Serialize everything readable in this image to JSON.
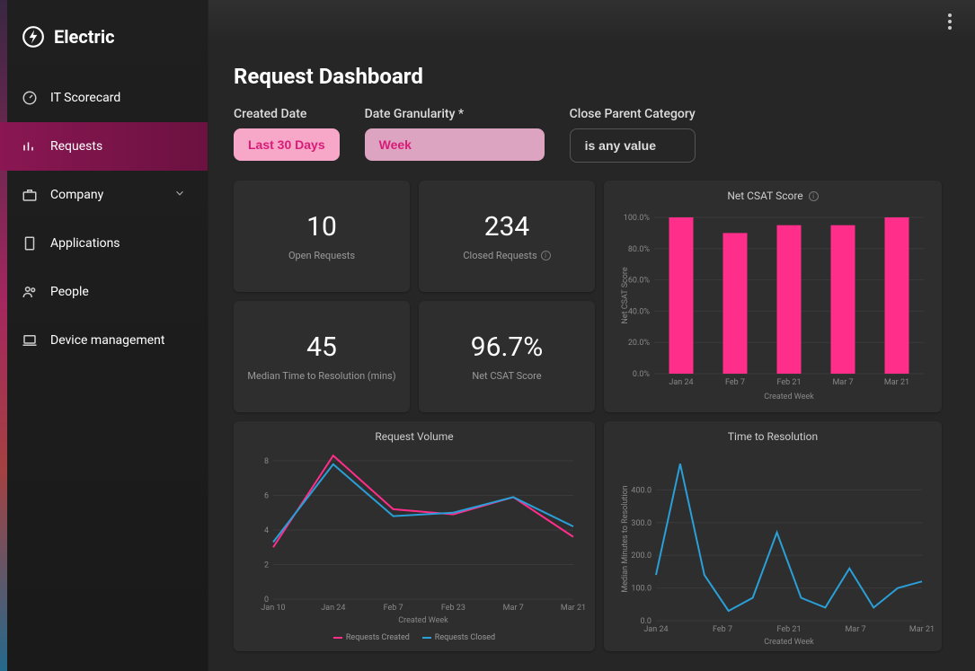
{
  "brand": "Electric",
  "nav": {
    "items": [
      {
        "key": "scorecard",
        "label": "IT Scorecard"
      },
      {
        "key": "requests",
        "label": "Requests",
        "active": true
      },
      {
        "key": "company",
        "label": "Company",
        "expandable": true
      },
      {
        "key": "applications",
        "label": "Applications"
      },
      {
        "key": "people",
        "label": "People"
      },
      {
        "key": "devices",
        "label": "Device management"
      }
    ]
  },
  "page_title": "Request Dashboard",
  "filters": {
    "created_date": {
      "label": "Created Date",
      "value": "Last 30 Days"
    },
    "granularity": {
      "label": "Date Granularity *",
      "value": "Week"
    },
    "close_parent": {
      "label": "Close Parent Category",
      "value": "is any value"
    }
  },
  "kpis": {
    "open": {
      "value": "10",
      "label": "Open Requests"
    },
    "closed": {
      "value": "234",
      "label": "Closed Requests"
    },
    "median_time": {
      "value": "45",
      "label": "Median Time to Resolution (mins)"
    },
    "csat": {
      "value": "96.7%",
      "label": "Net CSAT Score"
    }
  },
  "csat_chart": {
    "title": "Net CSAT Score",
    "type": "bar",
    "categories": [
      "Jan 24",
      "Feb 7",
      "Feb 21",
      "Mar 7",
      "Mar 21"
    ],
    "values": [
      100,
      90,
      95,
      95,
      100
    ],
    "bar_color": "#ff2e8b",
    "ylim": [
      0,
      100
    ],
    "ytick_step": 20,
    "ytick_format": "percent",
    "x_axis_label": "Created Week",
    "y_axis_label": "Net CSAT Score",
    "background": "#2e2e2e",
    "grid_color": "#3a3a3a",
    "bar_width": 0.45
  },
  "volume_chart": {
    "title": "Request Volume",
    "type": "line",
    "categories": [
      "Jan 10",
      "Jan 24",
      "Feb 7",
      "Feb 23",
      "Mar 7",
      "Mar 21"
    ],
    "series": [
      {
        "name": "Requests Created",
        "color": "#ff2e8b",
        "values": [
          3.0,
          8.3,
          5.2,
          4.9,
          5.9,
          3.6
        ]
      },
      {
        "name": "Requests Closed",
        "color": "#2a9fd8",
        "values": [
          3.3,
          7.8,
          4.8,
          5.0,
          5.9,
          4.2
        ]
      }
    ],
    "ylim": [
      0,
      8
    ],
    "ytick_step": 2,
    "x_axis_label": "Created Week",
    "background": "#2e2e2e",
    "grid_color": "#3a3a3a",
    "line_width": 2
  },
  "resolution_chart": {
    "title": "Time to Resolution",
    "type": "line",
    "categories": [
      "Jan 24",
      "Feb 7",
      "Feb 21",
      "Mar 7",
      "Mar 21"
    ],
    "series": [
      {
        "name": "Median Minutes to Resolution",
        "color": "#2a9fd8",
        "values": [
          140,
          480,
          140,
          30,
          70,
          270,
          70,
          40,
          160,
          40,
          100,
          120
        ]
      }
    ],
    "x_fine_points": 12,
    "ylim": [
      0,
      500
    ],
    "yticks": [
      0,
      100,
      200,
      300,
      400
    ],
    "x_axis_label": "Created Week",
    "y_axis_label": "Median Minutes to Resolution",
    "background": "#2e2e2e",
    "grid_color": "#3a3a3a",
    "line_width": 2
  },
  "colors": {
    "accent_pink": "#ff2e8b",
    "accent_cyan": "#2a9fd8",
    "card_bg": "#2e2e2e",
    "main_bg": "#262626"
  }
}
